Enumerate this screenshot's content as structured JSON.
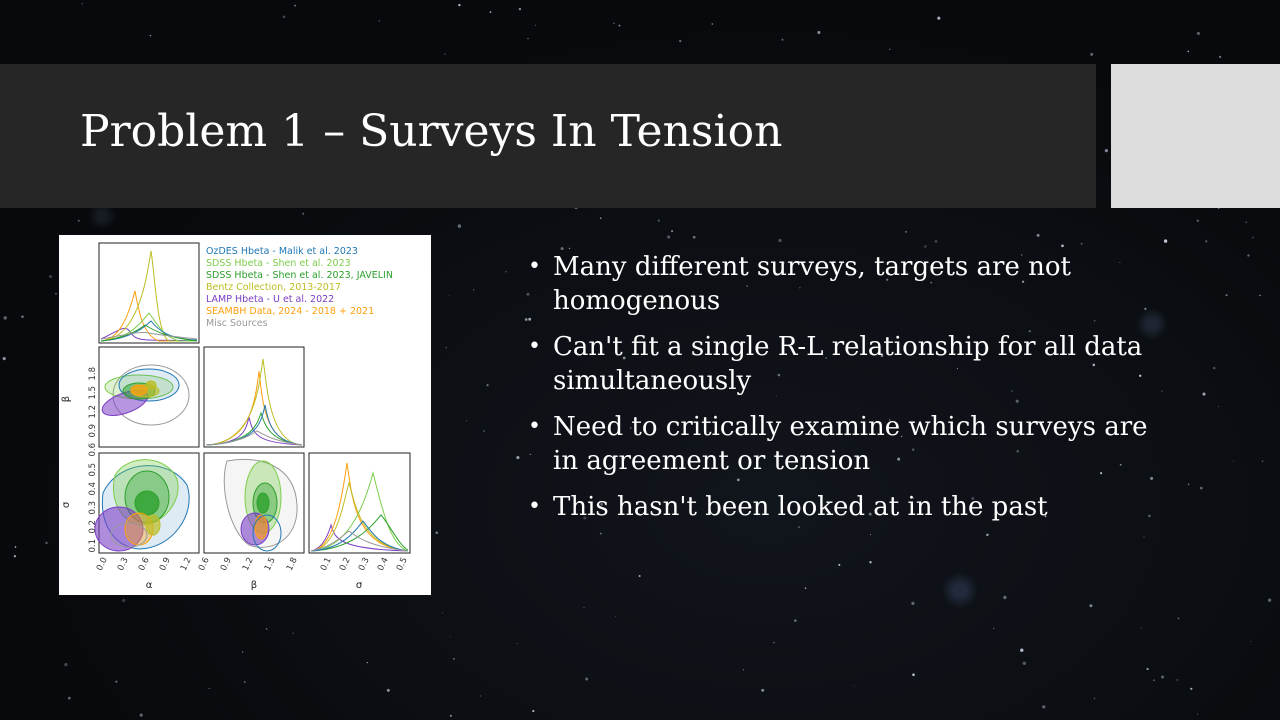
{
  "slide": {
    "title": "Problem 1 – Surveys In Tension",
    "bullets": [
      "Many different surveys, targets are not homogenous",
      "Can't fit a single R-L relationship for all data simultaneously",
      "Need to critically examine which surveys are in agreement or tension",
      "This hasn't been looked at in the past"
    ],
    "bullet_glyph": "•"
  },
  "figure": {
    "legend": [
      {
        "label": "OzDES Hbeta - Malik et al. 2023",
        "color": "#1f77b4"
      },
      {
        "label": "SDSS Hbeta - Shen et al. 2023",
        "color": "#7ccd4a"
      },
      {
        "label": "SDSS Hbeta - Shen et al. 2023, JAVELIN",
        "color": "#2ca02c"
      },
      {
        "label": "Bentz Collection, 2013-2017",
        "color": "#bcbd22"
      },
      {
        "label": "LAMP Hbeta - U et al. 2022",
        "color": "#7b3fc4"
      },
      {
        "label": "SEAMBH Data, 2024 - 2018 + 2021",
        "color": "#ff9f0e"
      },
      {
        "label": "Misc Sources",
        "color": "#999999"
      }
    ],
    "axis_labels": {
      "alpha": "α",
      "beta": "β",
      "sigma": "σ"
    },
    "alpha_ticks": [
      "0.0",
      "0.3",
      "0.6",
      "0.9",
      "1.2"
    ],
    "beta_ticks": [
      "0.6",
      "0.9",
      "1.2",
      "1.5",
      "1.8"
    ],
    "beta_ticks_x": [
      "0.6",
      "0.9",
      "1.2",
      "1.5",
      "1.8"
    ],
    "sigma_ticks": [
      "0.1",
      "0.2",
      "0.3",
      "0.4",
      "0.5"
    ],
    "sigma_ticks_x": [
      "0.1",
      "0.2",
      "0.3",
      "0.4",
      "0.5"
    ]
  }
}
